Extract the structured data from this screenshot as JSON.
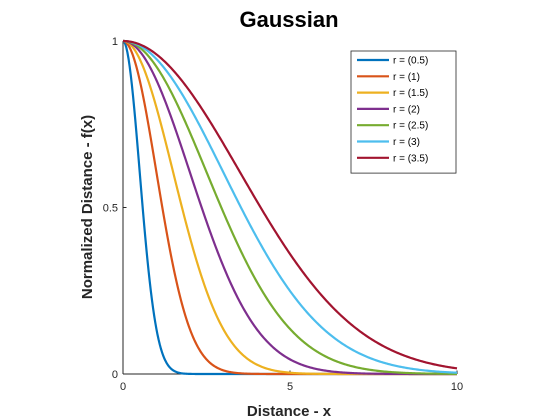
{
  "chart_data": {
    "type": "line",
    "title": "Gaussian",
    "xlabel": "Distance - x",
    "ylabel": "Normalized Distance - f(x)",
    "xlim": [
      0,
      10
    ],
    "ylim": [
      0,
      1
    ],
    "xticks": [
      "0",
      "5",
      "10"
    ],
    "yticks": [
      "0",
      "0.5",
      "1"
    ],
    "grid": false,
    "legend_position": "top-right",
    "function": "f(x) = exp(-x^2 / (2 r^2))",
    "series": [
      {
        "name": "r = (0.5)",
        "r": 0.5,
        "color": "#0072BD"
      },
      {
        "name": "r = (1)",
        "r": 1,
        "color": "#D95319"
      },
      {
        "name": "r = (1.5)",
        "r": 1.5,
        "color": "#EDB120"
      },
      {
        "name": "r = (2)",
        "r": 2,
        "color": "#7E2F8E"
      },
      {
        "name": "r = (2.5)",
        "r": 2.5,
        "color": "#77AC30"
      },
      {
        "name": "r = (3)",
        "r": 3,
        "color": "#4DBEEE"
      },
      {
        "name": "r = (3.5)",
        "r": 3.5,
        "color": "#A2142F"
      }
    ]
  }
}
